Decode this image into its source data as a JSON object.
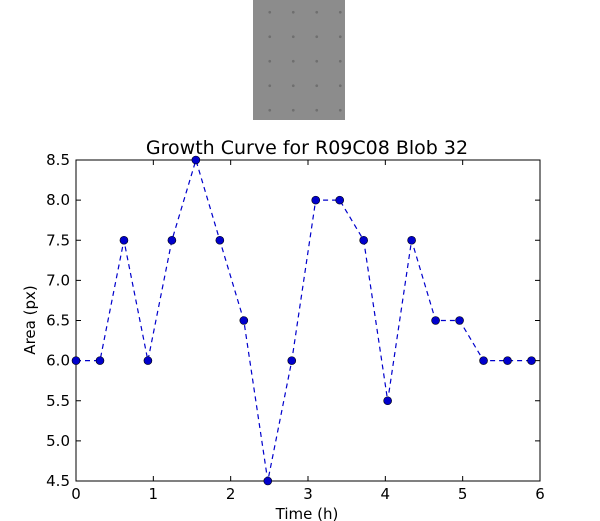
{
  "chart_data": {
    "type": "line",
    "title": "Growth Curve for R09C08 Blob 32",
    "xlabel": "Time (h)",
    "ylabel": "Area (px)",
    "xlim": [
      0,
      6
    ],
    "ylim": [
      4.5,
      8.5
    ],
    "xticks": [
      "0",
      "1",
      "2",
      "3",
      "4",
      "5",
      "6"
    ],
    "yticks": [
      "4.5",
      "5.0",
      "5.5",
      "6.0",
      "6.5",
      "7.0",
      "7.5",
      "8.0",
      "8.5"
    ],
    "grid": false,
    "line_style": "dashed",
    "series_color": "#0000cc",
    "marker_color": "#0000cc",
    "series": [
      {
        "x": [
          0,
          0.31,
          0.62,
          0.93,
          1.24,
          1.55,
          1.86,
          2.17,
          2.48,
          2.79,
          3.1,
          3.41,
          3.72,
          4.03,
          4.34,
          4.65,
          4.96,
          5.27,
          5.58,
          5.89
        ],
        "y": [
          6.0,
          6.0,
          7.5,
          6.0,
          7.5,
          8.5,
          7.5,
          6.5,
          4.5,
          6.0,
          8.0,
          8.0,
          7.5,
          5.5,
          7.5,
          6.5,
          6.5,
          6.0,
          6.0,
          6.0
        ]
      }
    ]
  }
}
